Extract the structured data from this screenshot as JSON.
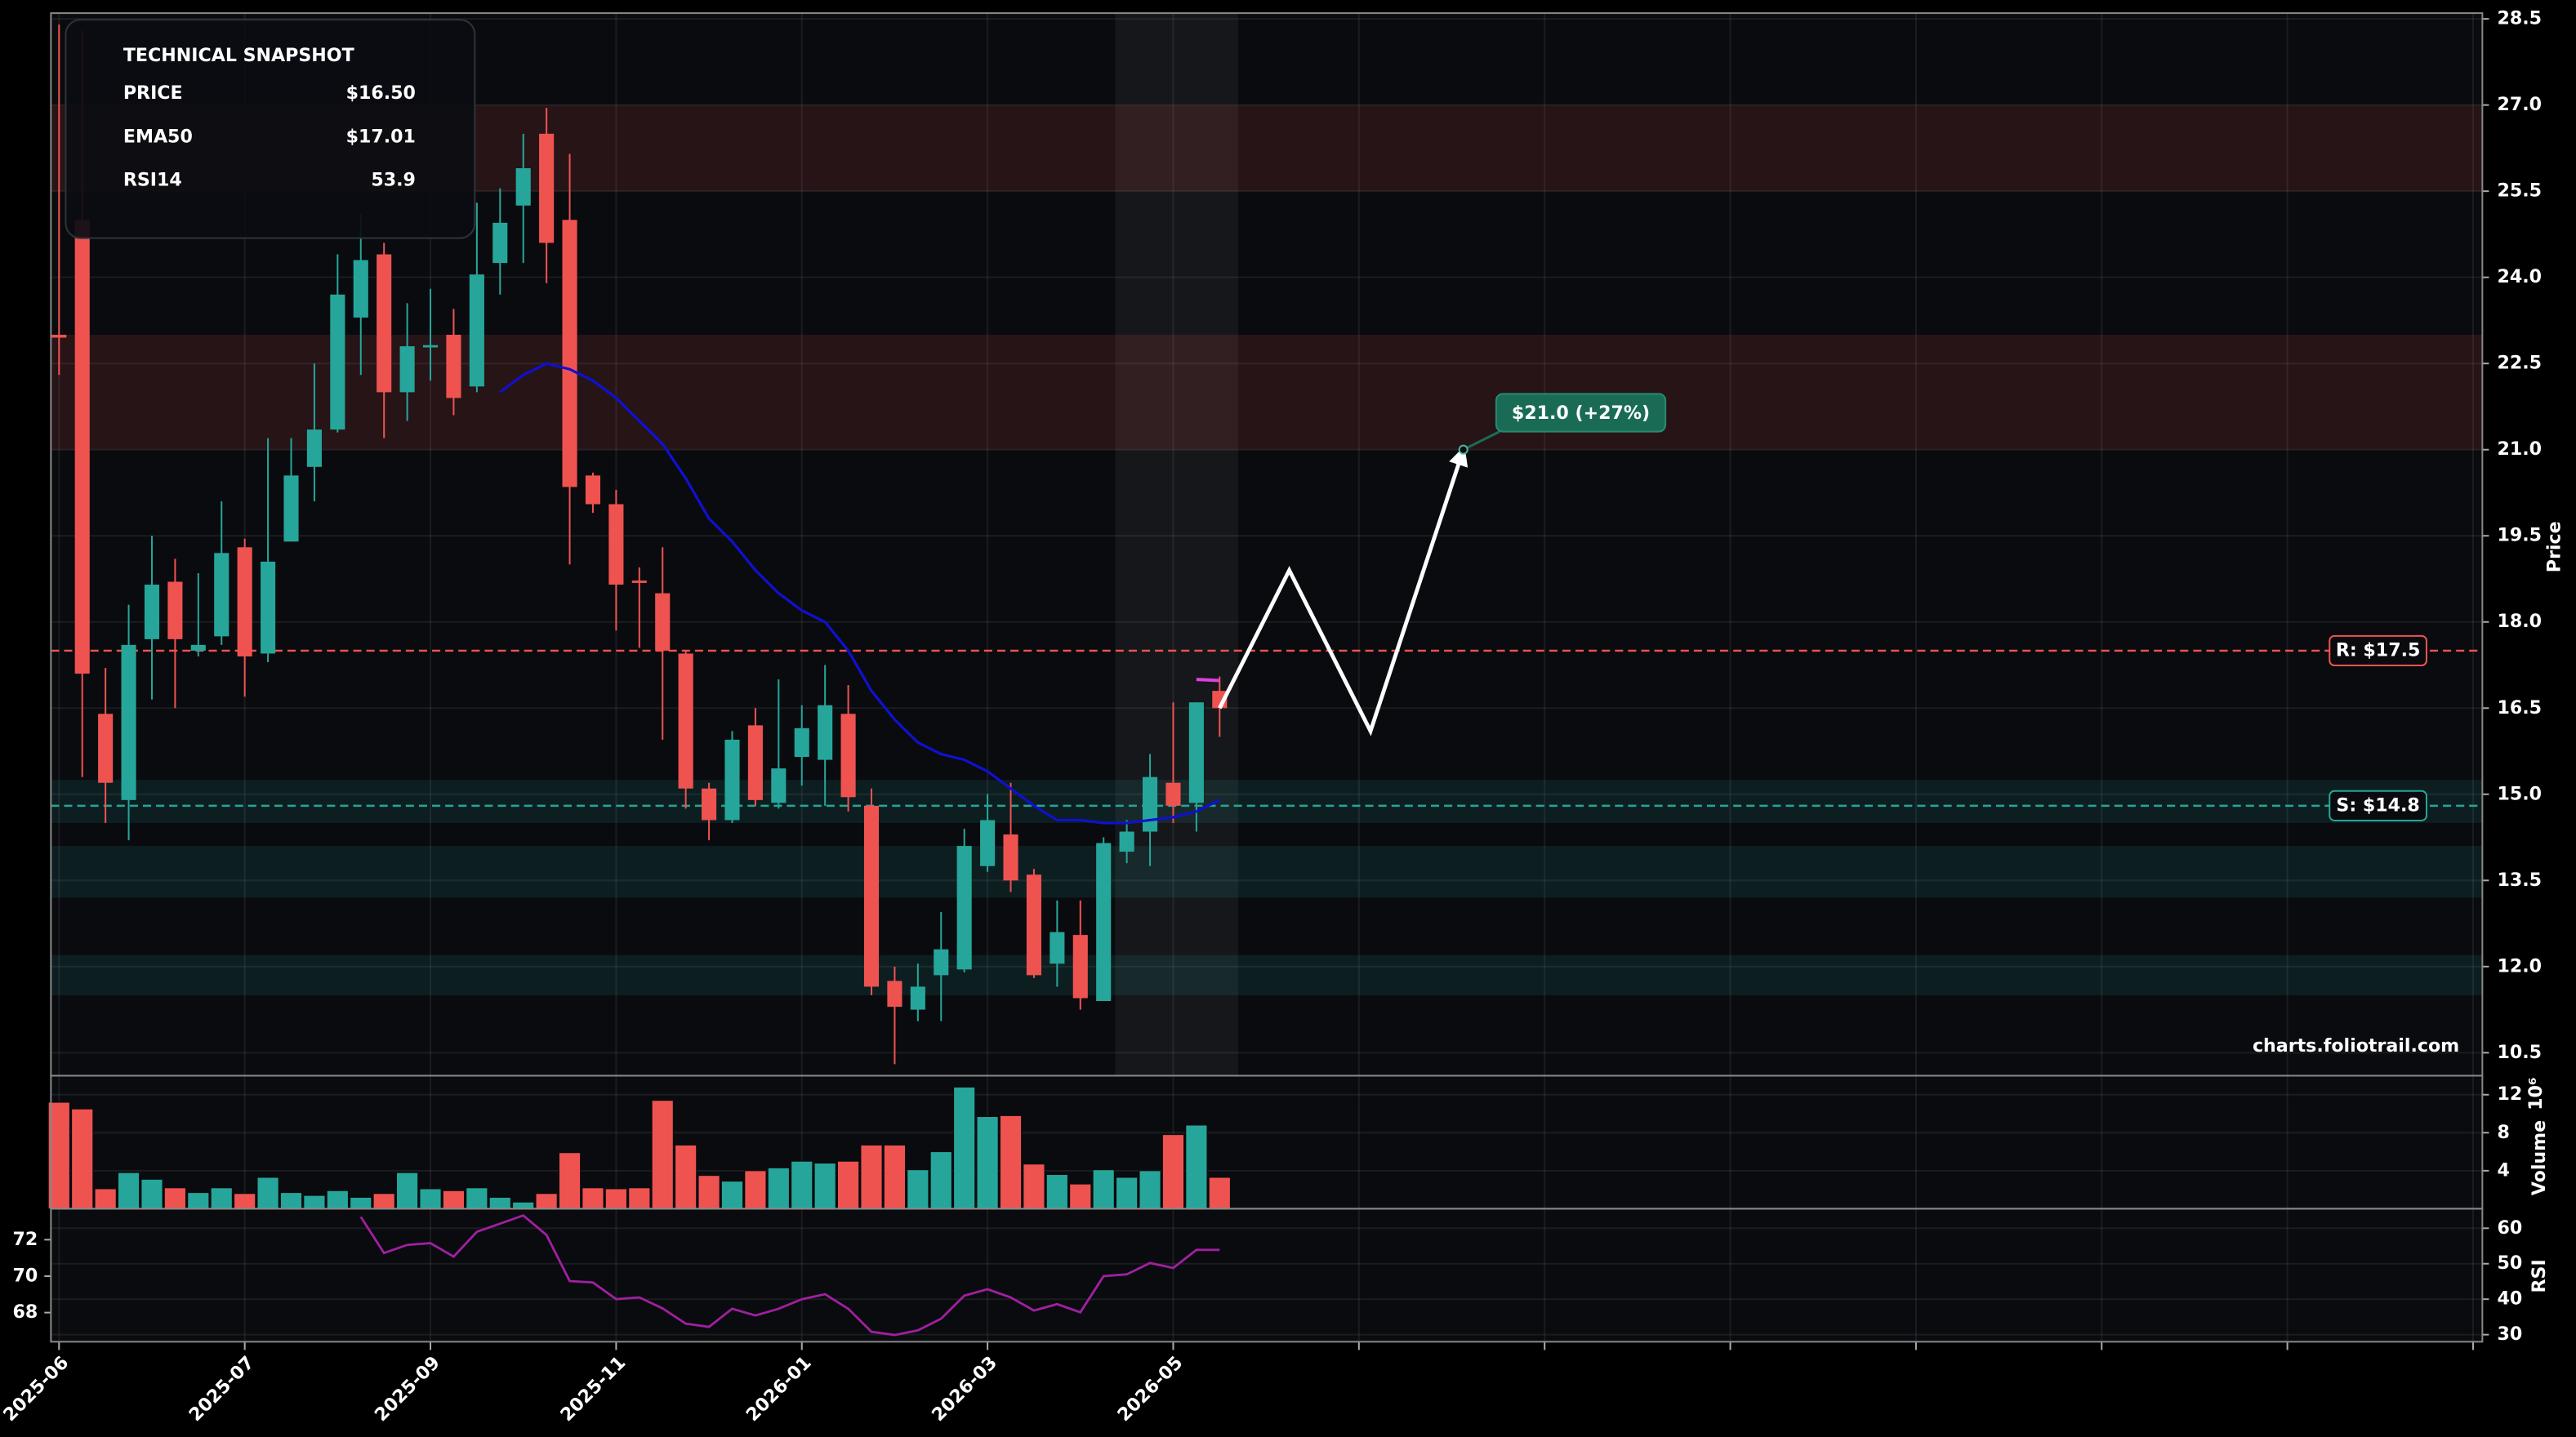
{
  "chart_data": [
    {
      "type": "candlestick",
      "axis_label": "Price",
      "watermark": "charts.foliotrail.com",
      "x": [
        0,
        1,
        2,
        3,
        4,
        5,
        6,
        7,
        8,
        9,
        10,
        11,
        12,
        13,
        14,
        15,
        16,
        17,
        18,
        19,
        20,
        21,
        22,
        23,
        24,
        25,
        26,
        27,
        28,
        29,
        30,
        31,
        32,
        33,
        34,
        35,
        36,
        37,
        38,
        39,
        40,
        41,
        42,
        43,
        44,
        45,
        46,
        47,
        48,
        49,
        50
      ],
      "open": [
        23.0,
        25.0,
        16.4,
        14.9,
        17.7,
        18.7,
        17.5,
        17.75,
        19.3,
        17.45,
        19.4,
        20.7,
        21.35,
        23.3,
        24.4,
        22.0,
        22.78,
        23.0,
        22.1,
        24.25,
        25.25,
        26.5,
        25.0,
        20.55,
        20.05,
        18.72,
        18.5,
        17.45,
        15.1,
        14.55,
        16.2,
        14.85,
        15.65,
        15.6,
        16.4,
        14.8,
        11.75,
        11.25,
        11.85,
        11.95,
        13.75,
        14.3,
        13.6,
        12.05,
        12.55,
        11.4,
        14.0,
        14.35,
        15.2,
        14.85,
        16.8
      ],
      "high": [
        28.4,
        28.3,
        17.2,
        18.3,
        19.5,
        19.1,
        18.85,
        20.1,
        19.45,
        21.2,
        21.2,
        22.5,
        24.4,
        25.1,
        24.6,
        23.55,
        23.8,
        23.45,
        25.3,
        25.55,
        26.5,
        26.95,
        26.15,
        20.6,
        20.3,
        18.95,
        19.3,
        17.5,
        15.2,
        16.1,
        16.5,
        17.0,
        16.55,
        17.25,
        16.9,
        15.1,
        12.0,
        12.05,
        12.95,
        14.4,
        15.0,
        15.2,
        13.7,
        13.15,
        13.15,
        14.25,
        14.55,
        15.7,
        16.6,
        16.6,
        17.05
      ],
      "low": [
        22.3,
        15.3,
        14.5,
        14.2,
        16.65,
        16.5,
        17.4,
        17.6,
        16.7,
        17.3,
        19.4,
        20.1,
        21.3,
        22.3,
        21.2,
        21.5,
        22.2,
        21.6,
        22.0,
        23.7,
        24.25,
        23.9,
        19.0,
        19.9,
        17.85,
        17.55,
        15.95,
        14.75,
        14.2,
        14.5,
        14.8,
        14.75,
        15.15,
        14.8,
        14.7,
        11.5,
        10.3,
        11.05,
        11.05,
        11.9,
        13.65,
        13.3,
        11.8,
        11.65,
        11.25,
        11.4,
        13.8,
        13.75,
        14.5,
        14.35,
        16.0
      ],
      "close": [
        22.95,
        17.1,
        15.2,
        17.6,
        18.65,
        17.7,
        17.6,
        19.2,
        17.4,
        19.05,
        20.55,
        21.35,
        23.7,
        24.3,
        22.0,
        22.8,
        22.82,
        21.9,
        24.05,
        24.95,
        25.9,
        24.6,
        20.35,
        20.05,
        18.65,
        18.68,
        17.5,
        15.1,
        14.55,
        15.95,
        14.9,
        15.45,
        16.15,
        16.55,
        14.95,
        11.65,
        11.3,
        11.65,
        12.3,
        14.1,
        14.55,
        13.5,
        11.85,
        12.6,
        11.45,
        14.15,
        14.35,
        15.3,
        14.8,
        16.6,
        16.5
      ],
      "up_color": "#26a69a",
      "down_color": "#ef5350",
      "ema": {
        "color": "#1010d0",
        "values": [
          null,
          null,
          null,
          null,
          null,
          null,
          null,
          null,
          null,
          null,
          null,
          null,
          null,
          null,
          null,
          null,
          null,
          null,
          null,
          22.0,
          22.3,
          22.5,
          22.4,
          22.2,
          21.9,
          21.5,
          21.1,
          20.5,
          19.8,
          19.4,
          18.9,
          18.5,
          18.2,
          18.0,
          17.5,
          16.8,
          16.3,
          15.9,
          15.7,
          15.6,
          15.4,
          15.1,
          14.8,
          14.55,
          14.55,
          14.5,
          14.5,
          14.55,
          14.6,
          14.7,
          14.9
        ]
      },
      "zones": [
        {
          "low": 25.5,
          "high": 27.0,
          "color": "#ef5350"
        },
        {
          "low": 21.0,
          "high": 23.0,
          "color": "#ef5350"
        },
        {
          "low": 14.5,
          "high": 15.25,
          "color": "#26a69a"
        },
        {
          "low": 13.2,
          "high": 14.1,
          "color": "#26a69a"
        },
        {
          "low": 11.5,
          "high": 12.2,
          "color": "#26a69a"
        }
      ],
      "levels": [
        {
          "value": 17.5,
          "label": "R: $17.5",
          "color": "#ef5350"
        },
        {
          "value": 14.8,
          "label": "S: $14.8",
          "color": "#26a69a"
        }
      ],
      "highlight": {
        "x0": 45.5,
        "x1": 50.8
      },
      "projection": {
        "x": [
          50,
          53,
          56.5,
          60.5
        ],
        "y": [
          16.5,
          18.9,
          16.1,
          21.0
        ],
        "color": "#ffffff",
        "annotation": "$21.0 (+27%)",
        "annotation_color": "#1a6b55"
      },
      "snapshot": {
        "title": "TECHNICAL SNAPSHOT",
        "rows": [
          {
            "label": "PRICE",
            "value": "$16.50",
            "color": "#ffffff"
          },
          {
            "label": "EMA50",
            "value": "$17.01",
            "color": "#e040e0"
          },
          {
            "label": "RSI14",
            "value": "53.9",
            "color": "#a020c0"
          }
        ]
      },
      "ylim": [
        10.1,
        28.6
      ],
      "yticks": [
        10.5,
        {
          "value": 12,
          "label": "12.0"
        },
        13.5,
        {
          "value": 15,
          "label": "15.0"
        },
        16.5,
        {
          "value": 18,
          "label": "18.0"
        },
        19.5,
        {
          "value": 21,
          "label": "21.0"
        },
        22.5,
        {
          "value": 24,
          "label": "24.0"
        },
        25.5,
        {
          "value": 27,
          "label": "27.0"
        },
        28.5
      ],
      "grid": true
    },
    {
      "type": "bar",
      "axis_label": "Volume",
      "offset_label": "10⁶",
      "values": [
        11.2,
        10.5,
        2.1,
        3.8,
        3.1,
        2.2,
        1.7,
        2.2,
        1.6,
        3.3,
        1.7,
        1.4,
        1.9,
        1.2,
        1.6,
        3.8,
        2.1,
        1.9,
        2.2,
        1.2,
        0.7,
        1.6,
        5.9,
        2.2,
        2.1,
        2.2,
        11.4,
        6.7,
        3.5,
        2.9,
        4.0,
        4.3,
        5.0,
        4.8,
        5.0,
        6.7,
        6.7,
        4.1,
        6.0,
        12.8,
        9.7,
        9.8,
        4.7,
        3.6,
        2.6,
        4.1,
        3.3,
        4.0,
        7.8,
        8.8,
        3.3
      ],
      "ylim": [
        0,
        14
      ],
      "yticks": [
        4,
        8,
        12
      ],
      "grid": true
    },
    {
      "type": "line",
      "axis_label": "RSI",
      "color": "#a020a0",
      "values": [
        null,
        null,
        null,
        null,
        null,
        null,
        null,
        null,
        null,
        null,
        null,
        null,
        null,
        63.2,
        53,
        55.3,
        55.8,
        52,
        59,
        61.3,
        63.6,
        58.1,
        45.1,
        44.7,
        40,
        40.5,
        37.4,
        33.1,
        32.2,
        37.3,
        35.4,
        37.3,
        40,
        41.4,
        37.3,
        30.8,
        29.9,
        31.2,
        34.5,
        41,
        42.8,
        40.5,
        36.8,
        38.6,
        36.3,
        46.5,
        47,
        50.2,
        48.8,
        53.9,
        53.9
      ],
      "ylim": [
        28,
        65.5
      ],
      "yticks": [
        30,
        40,
        50,
        60
      ],
      "y2lim": [
        66.4,
        73.7
      ],
      "y2ticks": [
        68,
        70,
        72
      ],
      "grid": true,
      "xlim": [
        -0.35,
        104.4
      ],
      "xticks": [
        {
          "value": 0,
          "label": "2025-06"
        },
        {
          "value": 8,
          "label": "2025-07"
        },
        {
          "value": 16,
          "label": "2025-09"
        },
        {
          "value": 24,
          "label": "2025-11"
        },
        {
          "value": 32,
          "label": "2026-01"
        },
        {
          "value": 40,
          "label": "2026-03"
        },
        {
          "value": 48,
          "label": "2026-05"
        },
        {
          "value": 56,
          "label": null
        },
        {
          "value": 64,
          "label": null
        },
        {
          "value": 72,
          "label": null
        },
        {
          "value": 80,
          "label": null
        },
        {
          "value": 88,
          "label": null
        },
        {
          "value": 96,
          "label": null
        },
        {
          "value": 104,
          "label": null
        }
      ]
    }
  ]
}
